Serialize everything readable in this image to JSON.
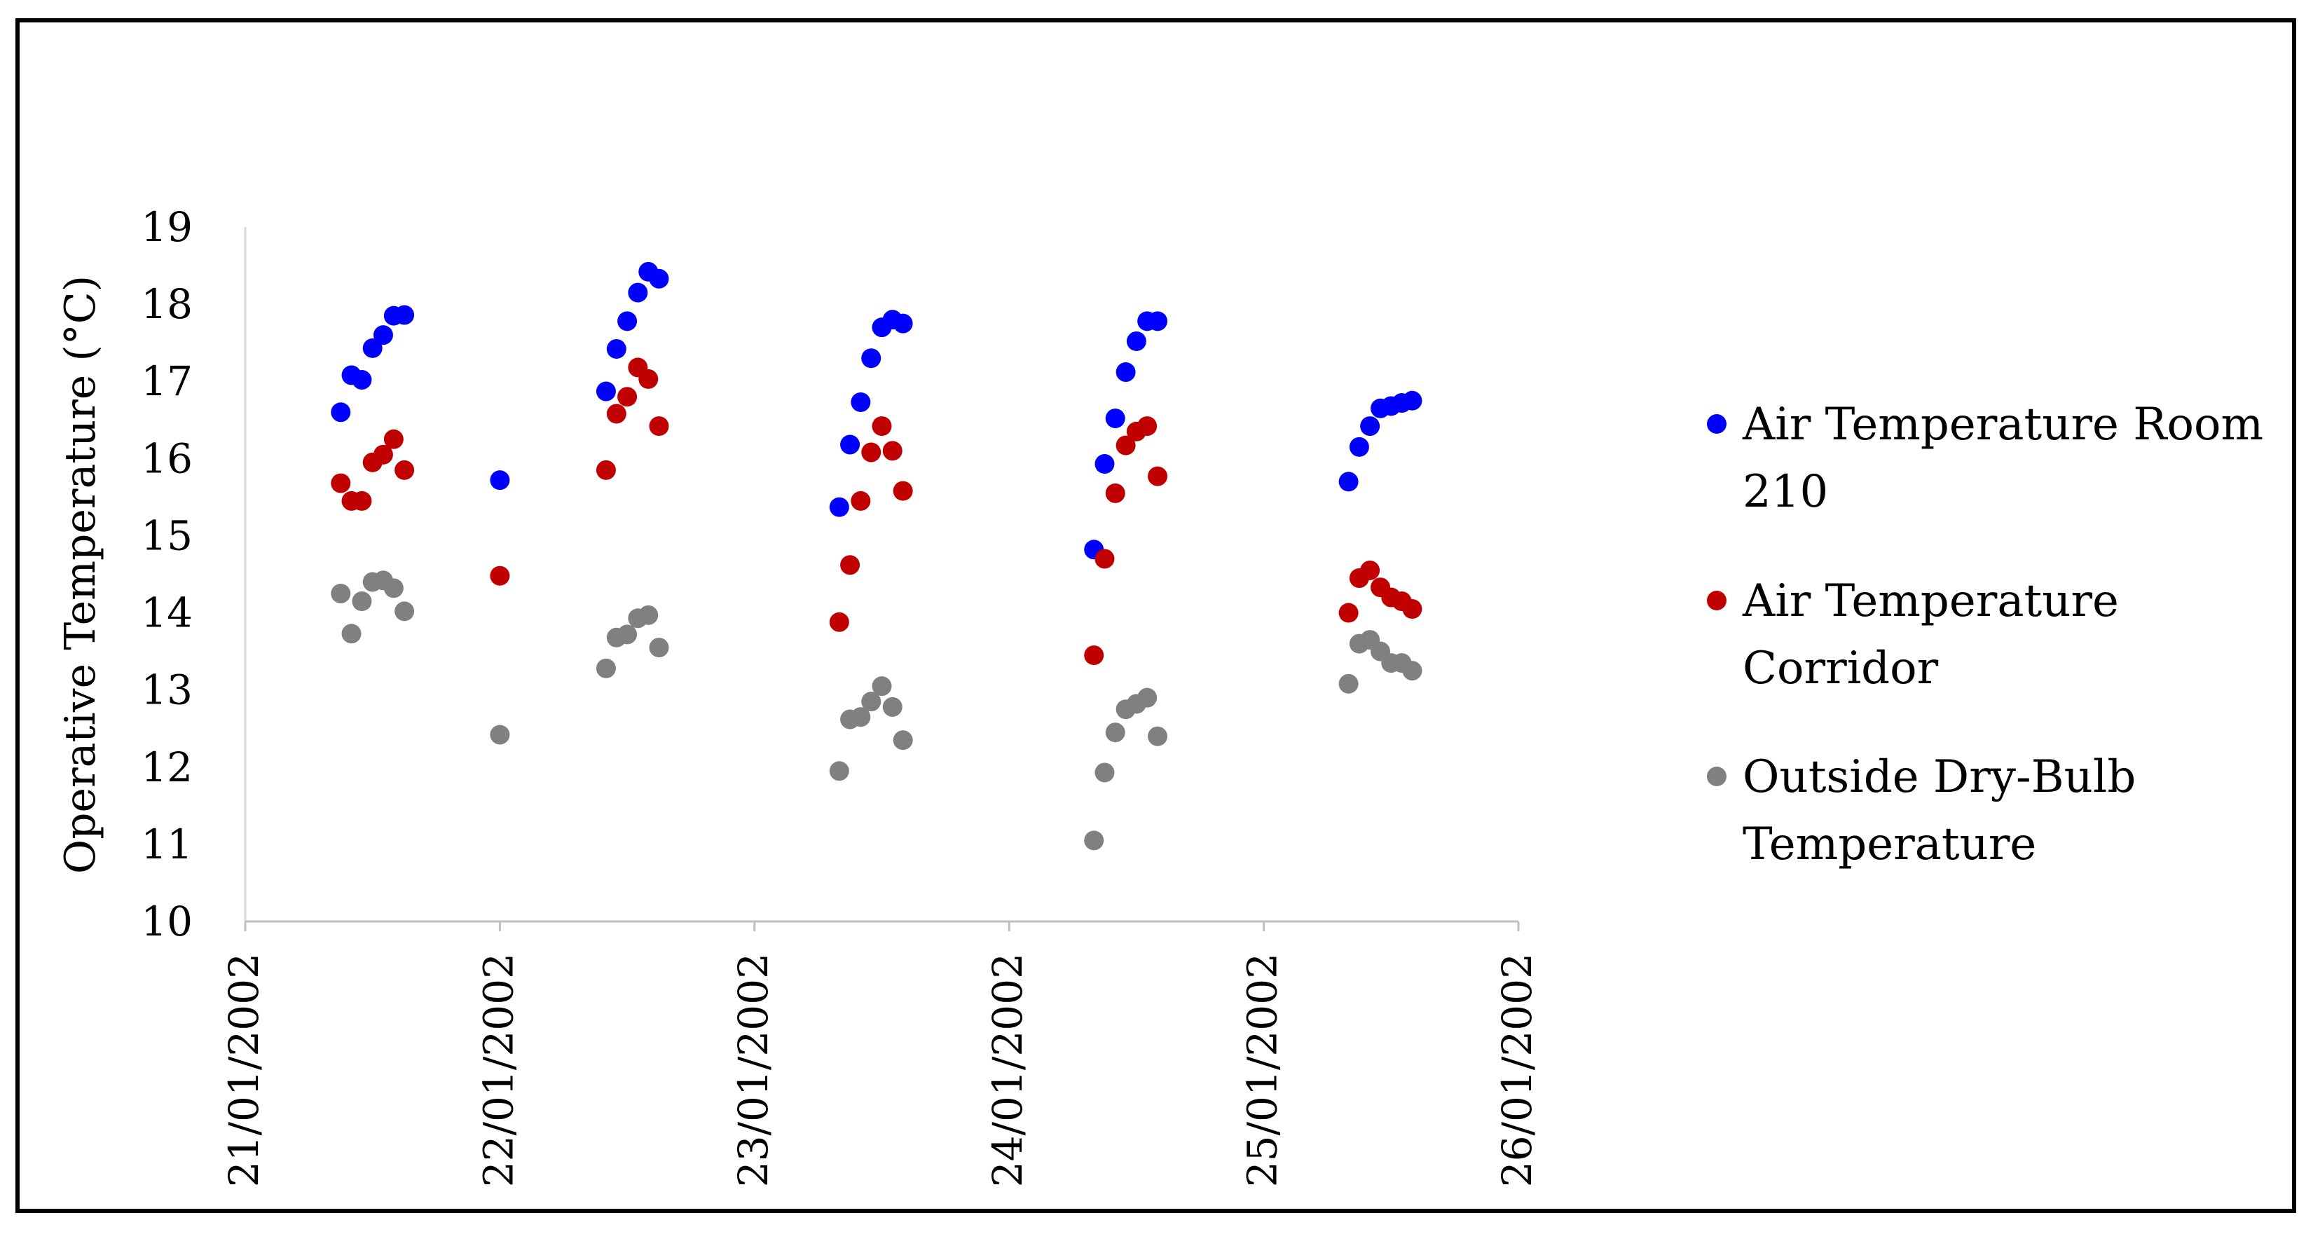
{
  "chart_data": {
    "type": "scatter",
    "title": "",
    "xlabel": "",
    "ylabel": "Operative Temperature (°C)",
    "ylim": [
      10,
      19
    ],
    "yticks": [
      10,
      11,
      12,
      13,
      14,
      15,
      16,
      17,
      18,
      19
    ],
    "xlim": [
      0,
      5
    ],
    "xtick_values": [
      0,
      1,
      2,
      3,
      4,
      5
    ],
    "xticks": [
      "21/01/2002",
      "22/01/2002",
      "23/01/2002",
      "24/01/2002",
      "25/01/2002",
      "26/01/2002"
    ],
    "grid": false,
    "legend_position": "right",
    "series": [
      {
        "name": "Air Temperature Room 210",
        "legend_lines": [
          "Air Temperature Room",
          "210"
        ],
        "color": "#0000FF",
        "points": [
          [
            0.375,
            16.6
          ],
          [
            0.417,
            17.08
          ],
          [
            0.458,
            17.02
          ],
          [
            0.5,
            17.43
          ],
          [
            0.542,
            17.6
          ],
          [
            0.583,
            17.85
          ],
          [
            0.625,
            17.86
          ],
          [
            1.0,
            15.72
          ],
          [
            1.417,
            16.87
          ],
          [
            1.458,
            17.42
          ],
          [
            1.5,
            17.78
          ],
          [
            1.542,
            18.15
          ],
          [
            1.583,
            18.42
          ],
          [
            1.625,
            18.33
          ],
          [
            2.333,
            15.37
          ],
          [
            2.375,
            16.18
          ],
          [
            2.417,
            16.73
          ],
          [
            2.458,
            17.3
          ],
          [
            2.5,
            17.7
          ],
          [
            2.542,
            17.8
          ],
          [
            2.583,
            17.75
          ],
          [
            3.333,
            14.82
          ],
          [
            3.375,
            15.93
          ],
          [
            3.417,
            16.52
          ],
          [
            3.458,
            17.12
          ],
          [
            3.5,
            17.52
          ],
          [
            3.542,
            17.78
          ],
          [
            3.583,
            17.78
          ],
          [
            4.333,
            15.7
          ],
          [
            4.375,
            16.15
          ],
          [
            4.417,
            16.42
          ],
          [
            4.458,
            16.65
          ],
          [
            4.5,
            16.68
          ],
          [
            4.542,
            16.72
          ],
          [
            4.583,
            16.75
          ]
        ]
      },
      {
        "name": "Air Temperature Corridor",
        "legend_lines": [
          "Air Temperature",
          "Corridor"
        ],
        "color": "#C00000",
        "points": [
          [
            0.375,
            15.68
          ],
          [
            0.417,
            15.45
          ],
          [
            0.458,
            15.45
          ],
          [
            0.5,
            15.95
          ],
          [
            0.542,
            16.05
          ],
          [
            0.583,
            16.25
          ],
          [
            0.625,
            15.85
          ],
          [
            1.0,
            14.48
          ],
          [
            1.417,
            15.85
          ],
          [
            1.458,
            16.58
          ],
          [
            1.5,
            16.8
          ],
          [
            1.542,
            17.18
          ],
          [
            1.583,
            17.03
          ],
          [
            1.625,
            16.42
          ],
          [
            2.333,
            13.88
          ],
          [
            2.375,
            14.62
          ],
          [
            2.417,
            15.45
          ],
          [
            2.458,
            16.08
          ],
          [
            2.5,
            16.42
          ],
          [
            2.542,
            16.1
          ],
          [
            2.583,
            15.58
          ],
          [
            3.333,
            13.45
          ],
          [
            3.375,
            14.7
          ],
          [
            3.417,
            15.55
          ],
          [
            3.458,
            16.17
          ],
          [
            3.5,
            16.35
          ],
          [
            3.542,
            16.42
          ],
          [
            3.583,
            15.77
          ],
          [
            4.333,
            14.0
          ],
          [
            4.375,
            14.45
          ],
          [
            4.417,
            14.55
          ],
          [
            4.458,
            14.33
          ],
          [
            4.5,
            14.2
          ],
          [
            4.542,
            14.15
          ],
          [
            4.583,
            14.05
          ]
        ]
      },
      {
        "name": "Outside Dry-Bulb Temperature",
        "legend_lines": [
          "Outside Dry-Bulb",
          "Temperature"
        ],
        "color": "#808080",
        "points": [
          [
            0.375,
            14.25
          ],
          [
            0.417,
            13.73
          ],
          [
            0.458,
            14.15
          ],
          [
            0.5,
            14.4
          ],
          [
            0.542,
            14.42
          ],
          [
            0.583,
            14.32
          ],
          [
            0.625,
            14.02
          ],
          [
            1.0,
            12.42
          ],
          [
            1.417,
            13.28
          ],
          [
            1.458,
            13.68
          ],
          [
            1.5,
            13.72
          ],
          [
            1.542,
            13.93
          ],
          [
            1.583,
            13.97
          ],
          [
            1.625,
            13.55
          ],
          [
            2.333,
            11.95
          ],
          [
            2.375,
            12.62
          ],
          [
            2.417,
            12.65
          ],
          [
            2.458,
            12.85
          ],
          [
            2.5,
            13.05
          ],
          [
            2.542,
            12.78
          ],
          [
            2.583,
            12.35
          ],
          [
            3.333,
            11.05
          ],
          [
            3.375,
            11.93
          ],
          [
            3.417,
            12.45
          ],
          [
            3.458,
            12.75
          ],
          [
            3.5,
            12.82
          ],
          [
            3.542,
            12.9
          ],
          [
            3.583,
            12.4
          ],
          [
            4.333,
            13.08
          ],
          [
            4.375,
            13.6
          ],
          [
            4.417,
            13.65
          ],
          [
            4.458,
            13.5
          ],
          [
            4.5,
            13.35
          ],
          [
            4.542,
            13.35
          ],
          [
            4.583,
            13.25
          ]
        ]
      }
    ]
  }
}
